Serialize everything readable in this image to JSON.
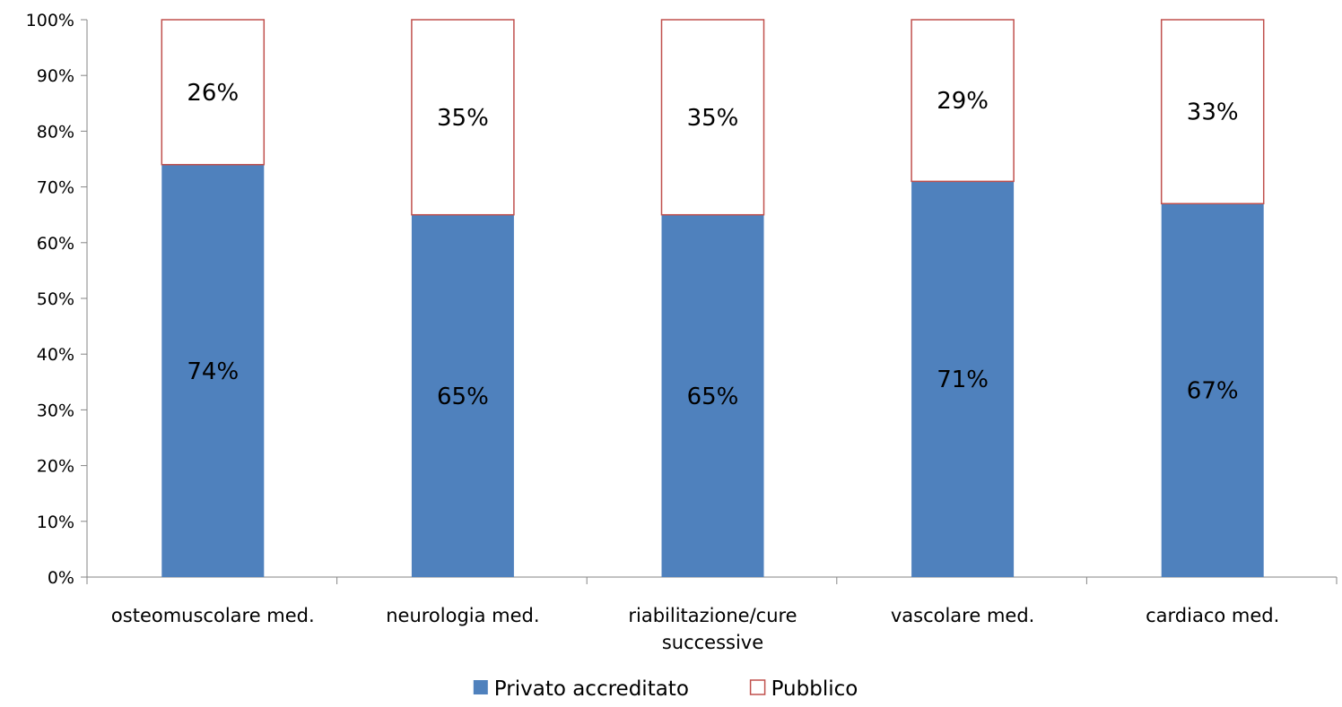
{
  "chart_data": {
    "type": "bar",
    "stacked": true,
    "categories": [
      [
        "osteomuscolare med."
      ],
      [
        "neurologia med."
      ],
      [
        "riabilitazione/cure",
        "successive"
      ],
      [
        "vascolare med."
      ],
      [
        "cardiaco med."
      ]
    ],
    "series": [
      {
        "name": "Privato accreditato",
        "values": [
          74,
          65,
          65,
          71,
          67
        ],
        "labels": [
          "74%",
          "65%",
          "65%",
          "71%",
          "67%"
        ],
        "fill": "#4f81bd",
        "stroke": "none"
      },
      {
        "name": "Pubblico",
        "values": [
          26,
          35,
          35,
          29,
          33
        ],
        "labels": [
          "26%",
          "35%",
          "35%",
          "29%",
          "33%"
        ],
        "fill": "#ffffff",
        "stroke": "#c0504d"
      }
    ],
    "y_ticks": [
      "0%",
      "10%",
      "20%",
      "30%",
      "40%",
      "50%",
      "60%",
      "70%",
      "80%",
      "90%",
      "100%"
    ],
    "ylim": [
      0,
      100
    ],
    "grid": false,
    "legend_position": "bottom",
    "title": "",
    "xlabel": "",
    "ylabel": ""
  }
}
